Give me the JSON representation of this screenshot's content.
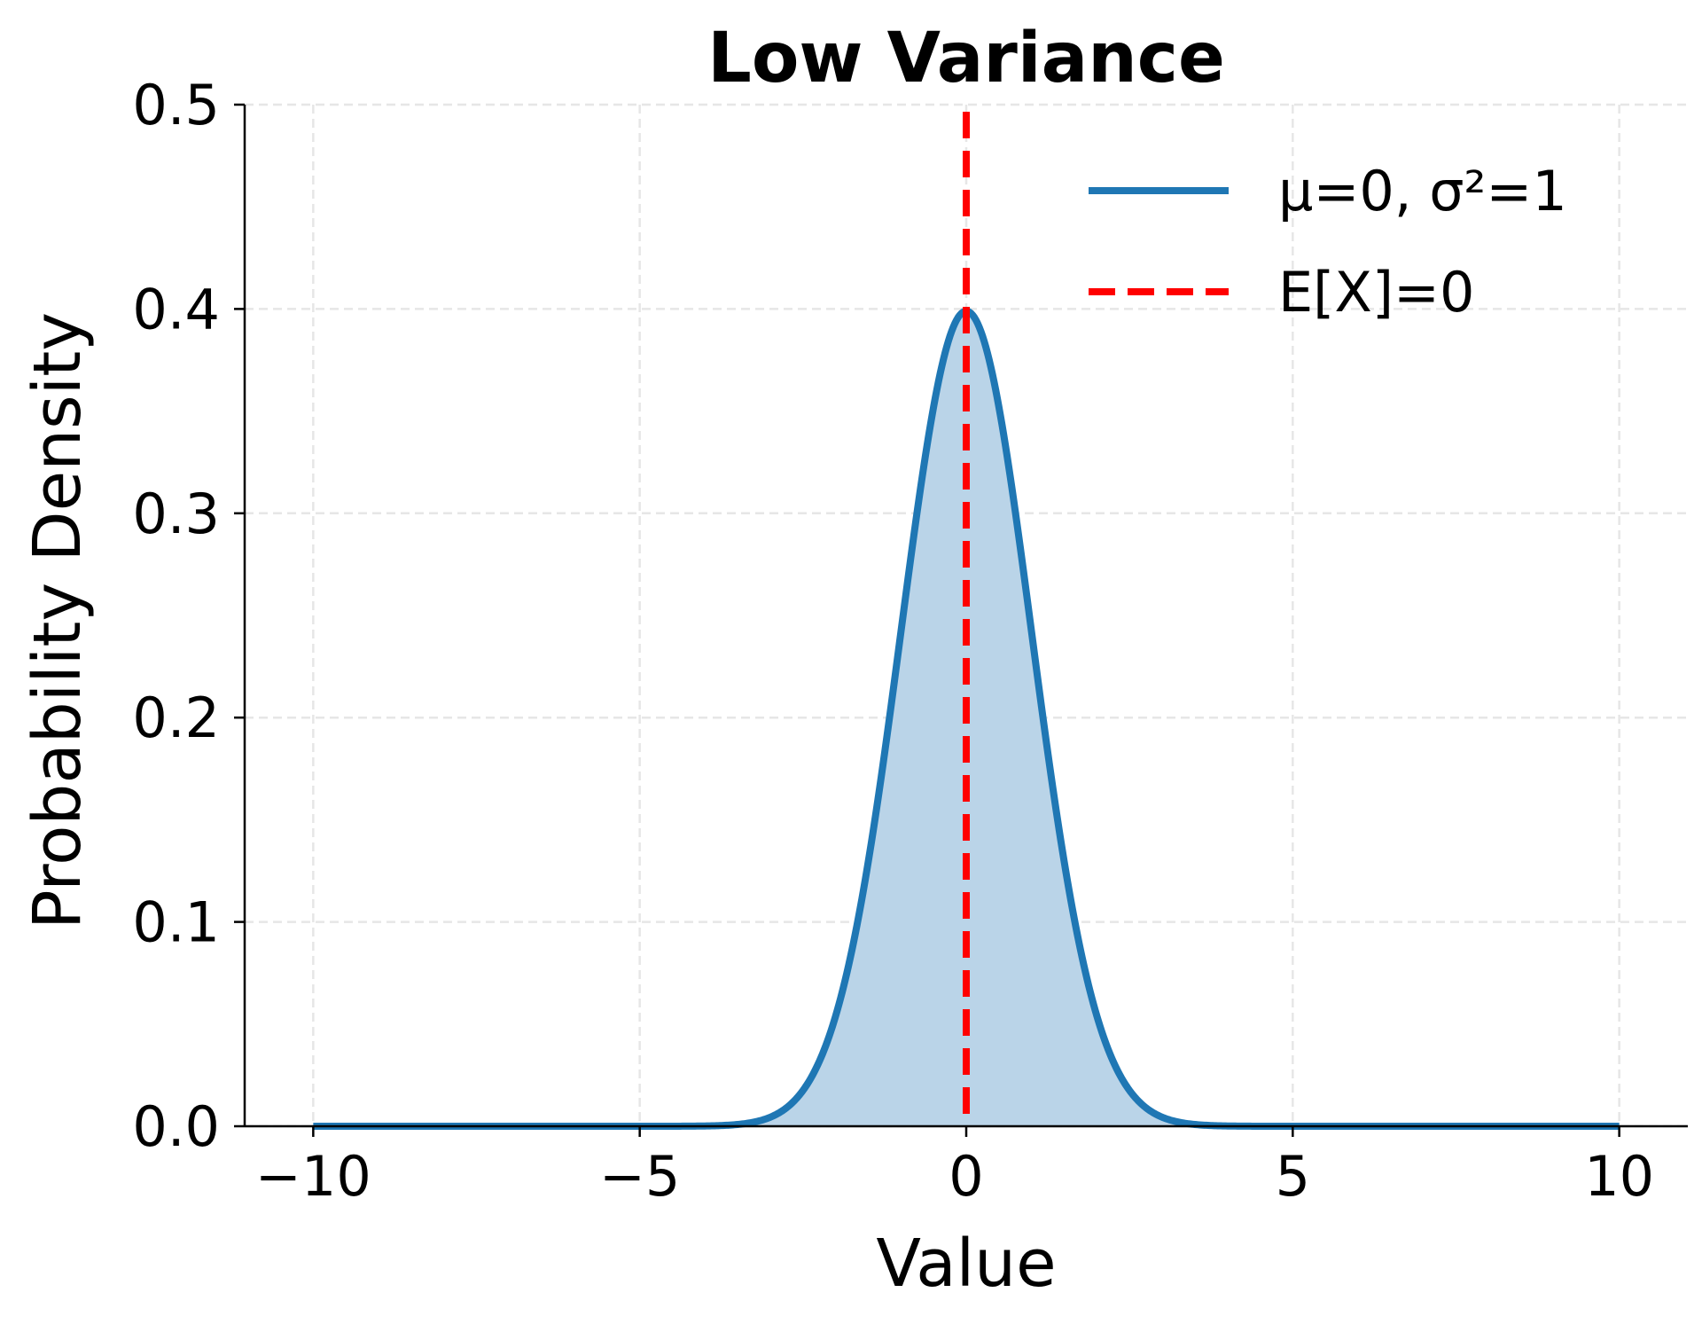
{
  "chart_data": {
    "type": "line",
    "title": "Low Variance",
    "xlabel": "Value",
    "ylabel": "Probability Density",
    "xlim": [
      -11.05,
      11.05
    ],
    "ylim": [
      0,
      0.5
    ],
    "xticks": [
      -10,
      -5,
      0,
      5,
      10
    ],
    "xtick_labels": [
      "−10",
      "−5",
      "0",
      "5",
      "10"
    ],
    "yticks": [
      0.0,
      0.1,
      0.2,
      0.3,
      0.4,
      0.5
    ],
    "ytick_labels": [
      "0.0",
      "0.1",
      "0.2",
      "0.3",
      "0.4",
      "0.5"
    ],
    "grid": true,
    "legend_position": "top-right",
    "series": [
      {
        "name": "μ=0, σ²=1",
        "kind": "normal-pdf",
        "mean": 0,
        "variance": 1,
        "x_range": [
          -10,
          10
        ],
        "filled": true,
        "color": "#1f77b4",
        "fill_color": "#bad4e8"
      },
      {
        "name": "E[X]=0",
        "kind": "vertical-line",
        "x": 0,
        "style": "dashed",
        "color": "#ff0000"
      }
    ]
  }
}
